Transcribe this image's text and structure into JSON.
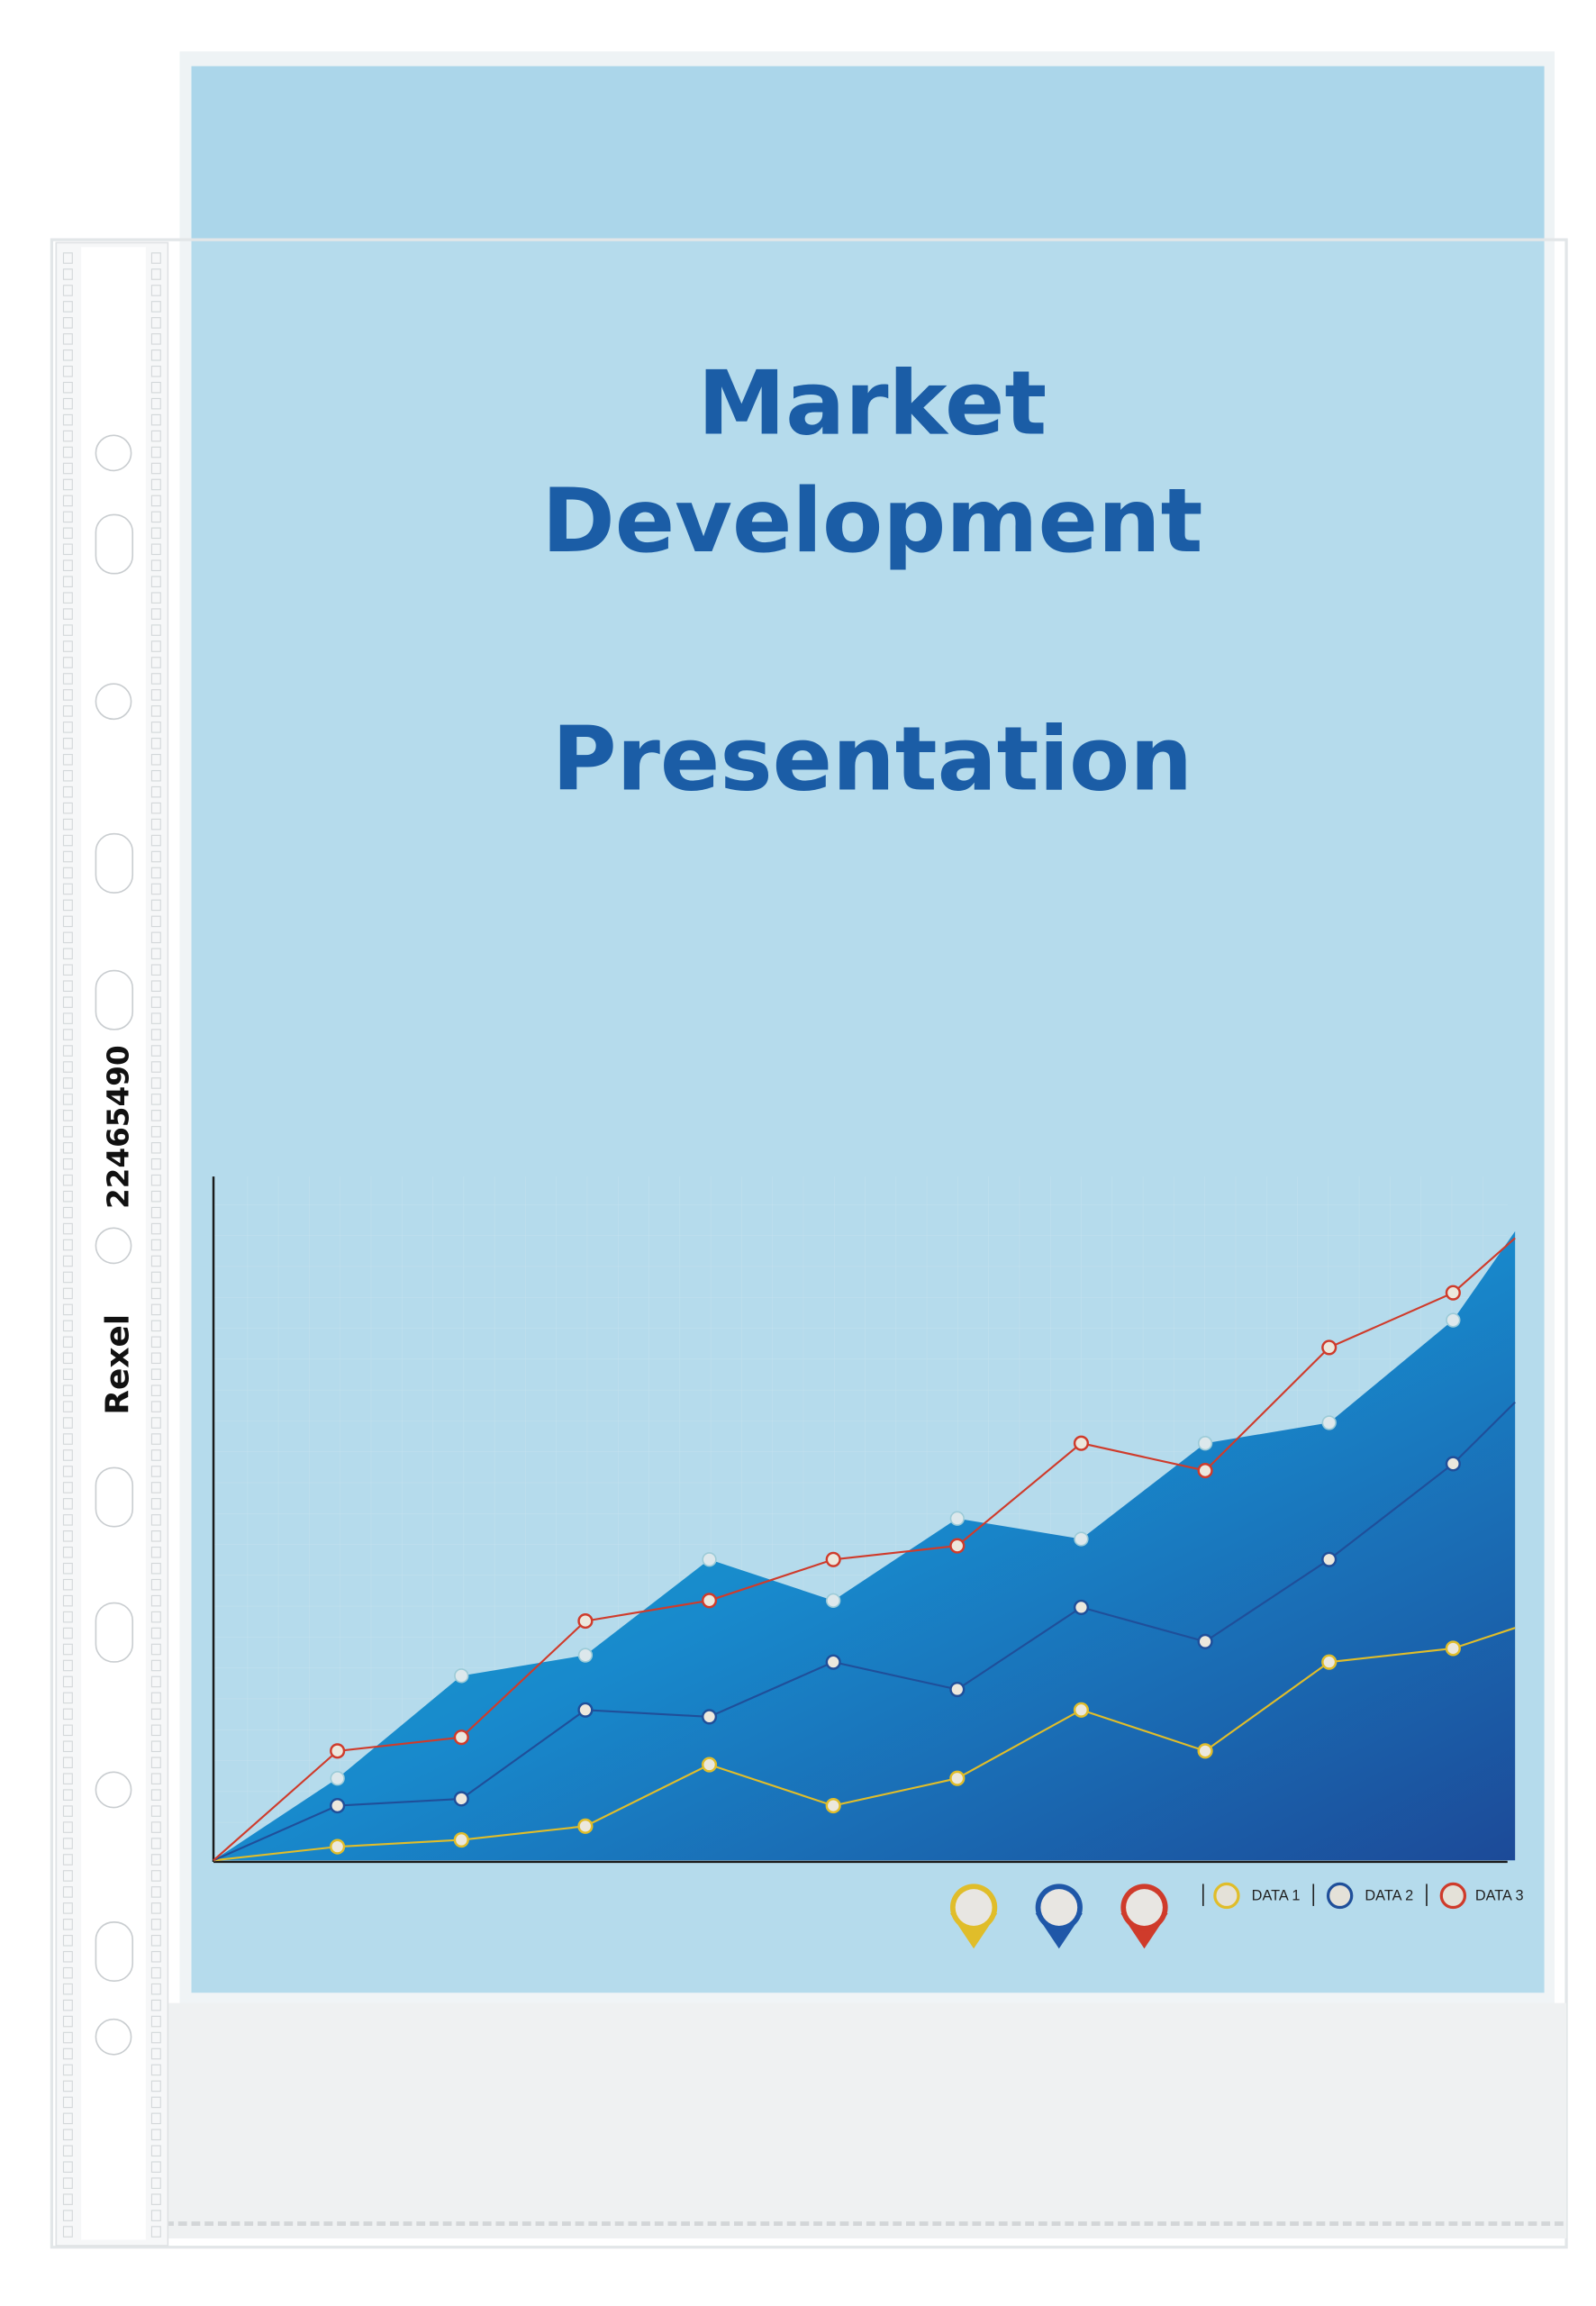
{
  "document": {
    "title_line1": "Market",
    "title_line2": "Development",
    "title_line3": "Presentation",
    "title_color": "#1b5da6",
    "background_color": "#a9d3e6"
  },
  "pocket": {
    "brand": "Rexel",
    "product_code": "22465490",
    "punch_holes": 11
  },
  "chart_data": {
    "type": "line",
    "title": "",
    "xlabel": "",
    "ylabel": "",
    "grid": true,
    "axis_ticks": false,
    "x": [
      0,
      1,
      2,
      3,
      4,
      5,
      6,
      7,
      8,
      9,
      10,
      10.5
    ],
    "ylim": [
      0,
      100
    ],
    "legend_position": "bottom-right",
    "area": {
      "colors": [
        "#0fb0c4",
        "#1a7fc7",
        "#1d4f9e"
      ],
      "top": [
        0,
        12,
        27,
        30,
        44,
        38,
        50,
        47,
        61,
        64,
        79,
        92
      ]
    },
    "series": [
      {
        "name": "DATA 1",
        "color": "#e0bd2a",
        "values": [
          0,
          2,
          3,
          5,
          14,
          8,
          12,
          22,
          16,
          29,
          31,
          34
        ]
      },
      {
        "name": "DATA 2",
        "color": "#1f4f9a",
        "values": [
          0,
          8,
          9,
          22,
          21,
          29,
          25,
          37,
          32,
          44,
          58,
          67
        ]
      },
      {
        "name": "DATA 3",
        "color": "#cf3b2b",
        "values": [
          0,
          16,
          18,
          35,
          38,
          44,
          46,
          61,
          57,
          75,
          83,
          91
        ]
      }
    ],
    "markers": [
      {
        "color": "#e0bd2a",
        "icon": "map-pin-icon"
      },
      {
        "color": "#1f57a8",
        "icon": "map-pin-icon"
      },
      {
        "color": "#cf3b2b",
        "icon": "map-pin-icon"
      }
    ]
  }
}
